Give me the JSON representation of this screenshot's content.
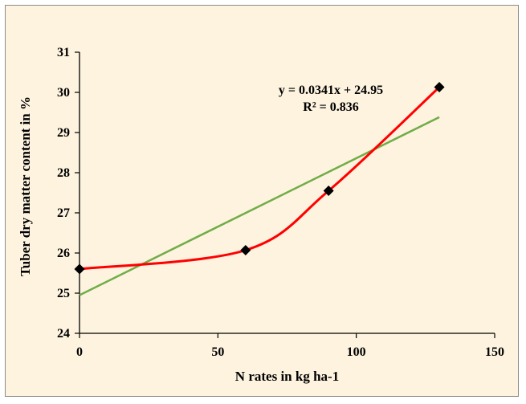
{
  "chart_data": {
    "type": "scatter",
    "title": "",
    "xlabel": "N rates in kg ha-1",
    "ylabel": "Tuber dry matter content in %",
    "xlim": [
      0,
      150
    ],
    "ylim": [
      24,
      31
    ],
    "x_ticks": [
      "0",
      "50",
      "100",
      "150"
    ],
    "y_ticks": [
      "24",
      "25",
      "26",
      "27",
      "28",
      "29",
      "30",
      "31"
    ],
    "grid": false,
    "series": [
      {
        "x": [
          0,
          60,
          90,
          130
        ],
        "y": [
          25.6,
          26.07,
          27.55,
          30.13
        ],
        "marker": "diamond",
        "line": "smooth",
        "color": "#ff0000",
        "marker_color": "#000000"
      }
    ],
    "trendline": {
      "type": "linear",
      "slope": 0.0341,
      "intercept": 24.95,
      "x_range": [
        0,
        130
      ],
      "color": "#70ad47",
      "equation_label": "y = 0.0341x + 24.95",
      "r2_label": "R² = 0.836"
    },
    "background_color": "#fdf3df"
  }
}
